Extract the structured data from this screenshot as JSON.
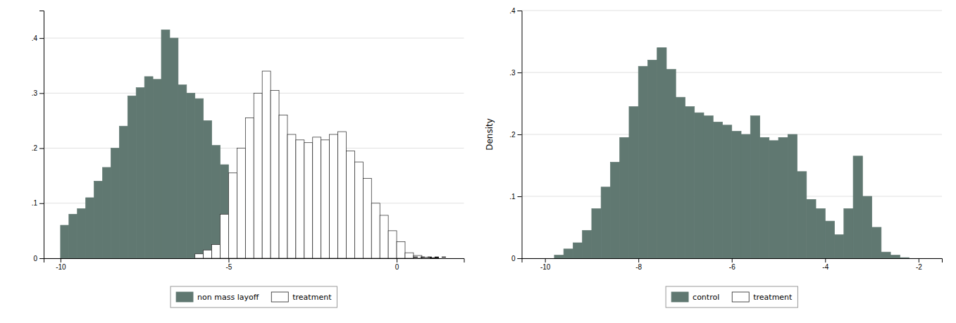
{
  "chart_data": [
    {
      "type": "histogram",
      "xlim": [
        -10.5,
        2.0
      ],
      "ylim": [
        0,
        0.45
      ],
      "xticks": [
        -10,
        -5,
        0
      ],
      "yticks": [
        0,
        {
          "value": 0.1,
          "label": ".1"
        },
        {
          "value": 0.2,
          "label": ".2"
        },
        {
          "value": 0.3,
          "label": ".3"
        },
        {
          "value": 0.4,
          "label": ".4"
        }
      ],
      "grid": true,
      "legend": "bottom",
      "bins": [
        -10,
        -9.75,
        -9.5,
        -9.25,
        -9,
        -8.75,
        -8.5,
        -8.25,
        -8,
        -7.75,
        -7.5,
        -7.25,
        -7,
        -6.75,
        -6.5,
        -6.25,
        -6,
        -5.75,
        -5.5,
        -5.25,
        -5,
        -4.75,
        -4.5,
        -4.25,
        -4,
        -3.75,
        -3.5,
        -3.25,
        -3,
        -2.75,
        -2.5,
        -2.25,
        -2,
        -1.75,
        -1.5,
        -1.25,
        -1,
        -0.75,
        -0.5,
        -0.25,
        0,
        0.25,
        0.5,
        0.75,
        1,
        1.25,
        1.5,
        1.75,
        2
      ],
      "series": [
        {
          "name": "non mass layoff",
          "color": "#607871",
          "values": [
            0.06,
            0.08,
            0.09,
            0.11,
            0.14,
            0.165,
            0.2,
            0.24,
            0.295,
            0.31,
            0.33,
            0.325,
            0.415,
            0.4,
            0.315,
            0.3,
            0.29,
            0.25,
            0.205,
            0.17,
            0.14,
            0.11,
            0.085,
            0.068,
            0.05,
            0.038,
            0.025,
            0.018,
            0.012,
            0.007,
            0.005,
            0.003,
            0.002,
            0.001,
            0.0,
            0.0,
            0.0,
            0.0,
            0.0,
            0.0,
            0.0,
            0.0,
            0.0,
            0.0,
            0.0,
            0.0,
            0.0,
            0.0
          ]
        },
        {
          "name": "treatment",
          "color": "#ffffff",
          "values": [
            0.0,
            0.0,
            0.0,
            0.0,
            0.0,
            0.0,
            0.0,
            0.0,
            0.0,
            0.0,
            0.0,
            0.0,
            0.0,
            0.0,
            0.0,
            0.0,
            0.008,
            0.015,
            0.025,
            0.08,
            0.155,
            0.2,
            0.255,
            0.3,
            0.34,
            0.305,
            0.26,
            0.225,
            0.215,
            0.21,
            0.22,
            0.215,
            0.225,
            0.23,
            0.195,
            0.175,
            0.145,
            0.1,
            0.078,
            0.05,
            0.03,
            0.01,
            0.005,
            0.002,
            0.001,
            0.0,
            0.0,
            0.0
          ]
        },
        {
          "type": "line",
          "color": "#000000",
          "line_style": "dashed",
          "x": [
            0.5,
            1.5
          ],
          "values": [
            0.002,
            0.002
          ]
        }
      ]
    },
    {
      "type": "histogram",
      "y_label": "Density",
      "xlim": [
        -10.5,
        -1.5
      ],
      "ylim": [
        0,
        0.4
      ],
      "xticks": [
        -10,
        -8,
        -6,
        -4,
        -2
      ],
      "yticks": [
        0,
        {
          "value": 0.1,
          "label": ".1"
        },
        {
          "value": 0.2,
          "label": ".2"
        },
        {
          "value": 0.3,
          "label": ".3"
        },
        {
          "value": 0.4,
          "label": ".4"
        }
      ],
      "grid": true,
      "legend": "bottom",
      "bins": [
        -9.8,
        -9.6,
        -9.4,
        -9.2,
        -9,
        -8.8,
        -8.6,
        -8.4,
        -8.2,
        -8,
        -7.8,
        -7.6,
        -7.4,
        -7.2,
        -7,
        -6.8,
        -6.6,
        -6.4,
        -6.2,
        -6,
        -5.8,
        -5.6,
        -5.4,
        -5.2,
        -5,
        -4.8,
        -4.6,
        -4.4,
        -4.2,
        -4,
        -3.8,
        -3.6,
        -3.4,
        -3.2,
        -3,
        -2.8,
        -2.6,
        -2.4,
        -2.2
      ],
      "series": [
        {
          "name": "control",
          "color": "#607871",
          "values": [
            0.005,
            0.015,
            0.025,
            0.045,
            0.08,
            0.115,
            0.155,
            0.195,
            0.245,
            0.31,
            0.32,
            0.34,
            0.305,
            0.26,
            0.245,
            0.235,
            0.23,
            0.22,
            0.215,
            0.205,
            0.2,
            0.23,
            0.195,
            0.19,
            0.195,
            0.2,
            0.14,
            0.095,
            0.08,
            0.06,
            0.038,
            0.08,
            0.165,
            0.1,
            0.05,
            0.01,
            0.005,
            0.001
          ]
        },
        {
          "name": "treatment",
          "color": "#ffffff",
          "values": [
            null,
            null,
            null,
            null,
            null,
            null,
            null,
            null,
            null,
            null,
            null,
            null,
            null,
            null,
            null,
            null,
            null,
            null,
            null,
            null,
            null,
            null,
            null,
            null,
            null,
            null,
            null,
            null,
            null,
            null,
            null,
            null,
            null,
            null,
            null,
            null,
            null,
            null
          ]
        }
      ]
    }
  ]
}
